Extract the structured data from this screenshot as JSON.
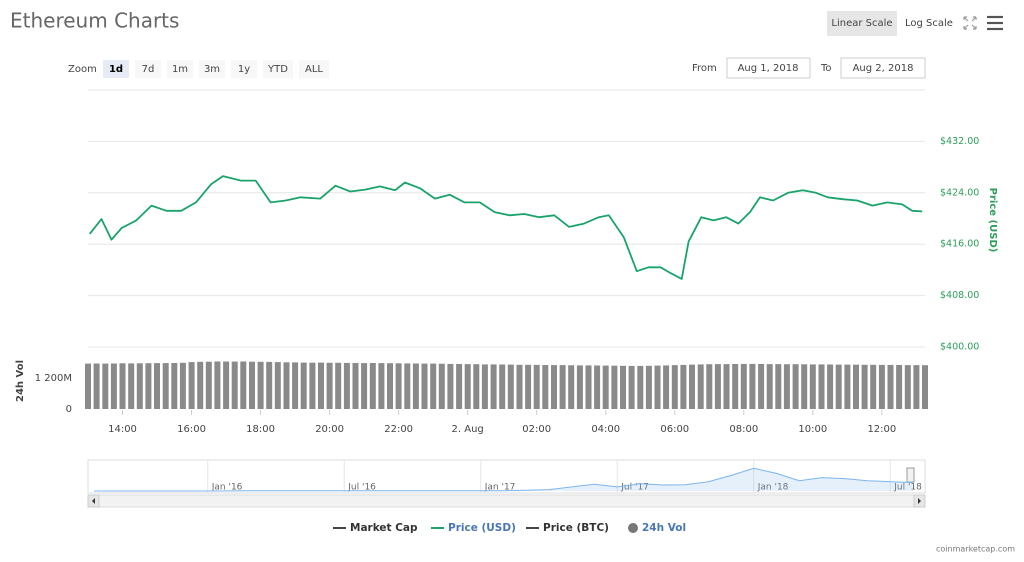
{
  "header": {
    "title": "Ethereum Charts",
    "linear_scale": "Linear Scale",
    "log_scale": "Log Scale",
    "zoom_label": "Zoom",
    "zoom": [
      "1d",
      "7d",
      "1m",
      "3m",
      "1y",
      "YTD",
      "ALL"
    ],
    "from_label": "From",
    "from": "Aug 1, 2018",
    "to_label": "To",
    "to": "Aug 2, 2018"
  },
  "legend": [
    {
      "name": "Market Cap",
      "color": "#434348"
    },
    {
      "name": "Price (USD)",
      "color": "#1aa36b"
    },
    {
      "name": "Price (BTC)",
      "color": "#434348"
    },
    {
      "name": "24h Vol",
      "color": "#777777"
    }
  ],
  "credit": "coinmarketcap.com",
  "chart_data": [
    {
      "type": "line",
      "y_label": "Price (USD)",
      "color": "#1aa36b",
      "grid": true,
      "xlim": [
        13,
        37.25
      ],
      "xticks": [
        {
          "value": 14,
          "label": "14:00"
        },
        {
          "value": 16,
          "label": "16:00"
        },
        {
          "value": 18,
          "label": "18:00"
        },
        {
          "value": 20,
          "label": "20:00"
        },
        {
          "value": 22,
          "label": "22:00"
        },
        {
          "value": 24,
          "label": "2. Aug"
        },
        {
          "value": 26,
          "label": "02:00"
        },
        {
          "value": 28,
          "label": "04:00"
        },
        {
          "value": 30,
          "label": "06:00"
        },
        {
          "value": 32,
          "label": "08:00"
        },
        {
          "value": 34,
          "label": "10:00"
        },
        {
          "value": 36,
          "label": "12:00"
        }
      ],
      "ylim": [
        400,
        440
      ],
      "yticks": [
        {
          "value": 400,
          "label": "$400.00"
        },
        {
          "value": 408,
          "label": "$408.00"
        },
        {
          "value": 416,
          "label": "$416.00"
        },
        {
          "value": 424,
          "label": "$424.00"
        },
        {
          "value": 432,
          "label": "$432.00"
        }
      ],
      "x": [
        13.05,
        13.39,
        13.68,
        13.97,
        14.4,
        14.84,
        15.27,
        15.7,
        16.13,
        16.56,
        16.91,
        17.43,
        17.86,
        18.29,
        18.73,
        19.16,
        19.73,
        20.17,
        20.6,
        21.03,
        21.46,
        21.9,
        22.18,
        22.62,
        23.05,
        23.48,
        23.91,
        24.35,
        24.78,
        25.21,
        25.64,
        26.07,
        26.51,
        26.94,
        27.37,
        27.8,
        28.09,
        28.52,
        28.9,
        29.24,
        29.59,
        29.88,
        30.2,
        30.4,
        30.77,
        31.12,
        31.49,
        31.84,
        32.18,
        32.47,
        32.85,
        33.28,
        33.71,
        34.09,
        34.43,
        34.86,
        35.29,
        35.73,
        36.16,
        36.59,
        36.88,
        37.17
      ],
      "values": [
        417.6,
        419.9,
        416.7,
        418.5,
        419.7,
        422,
        421.2,
        421.2,
        422.5,
        425.3,
        426.6,
        425.9,
        425.9,
        422.5,
        422.8,
        423.3,
        423.1,
        425.1,
        424.2,
        424.5,
        425,
        424.4,
        425.6,
        424.7,
        423.1,
        423.7,
        422.5,
        422.5,
        421,
        420.5,
        420.7,
        420.2,
        420.5,
        418.7,
        419.2,
        420.2,
        420.5,
        417.1,
        411.8,
        412.4,
        412.4,
        411.5,
        410.6,
        416.4,
        420.2,
        419.7,
        420.2,
        419.2,
        421,
        423.3,
        422.8,
        424,
        424.4,
        424,
        423.3,
        423,
        422.8,
        422,
        422.5,
        422.2,
        421.2,
        421.1
      ]
    },
    {
      "type": "bar",
      "y_label": "24h Vol",
      "color": "#8a8a8a",
      "grid": false,
      "xlim": [
        13,
        37.25
      ],
      "ylim": [
        0,
        2300
      ],
      "yticks": [
        0,
        {
          "value": 1200,
          "label": "1 200M"
        }
      ],
      "x": [
        13,
        13.25,
        13.5,
        13.75,
        14,
        14.25,
        14.5,
        14.75,
        15,
        15.25,
        15.5,
        15.75,
        16,
        16.25,
        16.5,
        16.75,
        17,
        17.25,
        17.5,
        17.75,
        18,
        18.25,
        18.5,
        18.75,
        19,
        19.25,
        19.5,
        19.75,
        20,
        20.25,
        20.5,
        20.75,
        21,
        21.25,
        21.5,
        21.75,
        22,
        22.25,
        22.5,
        22.75,
        23,
        23.25,
        23.5,
        23.75,
        24,
        24.25,
        24.5,
        24.75,
        25,
        25.25,
        25.5,
        25.75,
        26,
        26.25,
        26.5,
        26.75,
        27,
        27.25,
        27.5,
        27.75,
        28,
        28.25,
        28.5,
        28.75,
        29,
        29.25,
        29.5,
        29.75,
        30,
        30.25,
        30.5,
        30.75,
        31,
        31.25,
        31.5,
        31.75,
        32,
        32.25,
        32.5,
        32.75,
        33,
        33.25,
        33.5,
        33.75,
        34,
        34.25,
        34.5,
        34.75,
        35,
        35.25,
        35.5,
        35.75,
        36,
        36.25,
        36.5,
        36.75,
        37,
        37.25
      ],
      "values": [
        1770,
        1775,
        1768,
        1772,
        1780,
        1776,
        1782,
        1785,
        1790,
        1788,
        1795,
        1800,
        1830,
        1840,
        1845,
        1850,
        1852,
        1848,
        1850,
        1845,
        1840,
        1835,
        1830,
        1822,
        1815,
        1810,
        1805,
        1808,
        1800,
        1802,
        1798,
        1795,
        1790,
        1792,
        1788,
        1785,
        1780,
        1778,
        1775,
        1770,
        1768,
        1765,
        1760,
        1755,
        1750,
        1745,
        1740,
        1738,
        1735,
        1730,
        1725,
        1722,
        1720,
        1715,
        1712,
        1710,
        1705,
        1700,
        1698,
        1695,
        1690,
        1688,
        1685,
        1680,
        1682,
        1685,
        1690,
        1700,
        1710,
        1720,
        1730,
        1740,
        1745,
        1750,
        1752,
        1755,
        1760,
        1758,
        1755,
        1752,
        1750,
        1748,
        1745,
        1742,
        1740,
        1738,
        1735,
        1732,
        1730,
        1728,
        1725,
        1722,
        1720,
        1718,
        1715,
        1712,
        1710,
        1708
      ]
    },
    {
      "type": "area",
      "color": "#7cb5ec",
      "xlim": [
        "2015-08",
        "2018-08"
      ],
      "ylim": [
        0,
        1500
      ],
      "xticks": [
        {
          "value": "2016-01",
          "label": "Jan '16"
        },
        {
          "value": "2016-07",
          "label": "Jul '16"
        },
        {
          "value": "2017-01",
          "label": "Jan '17"
        },
        {
          "value": "2017-07",
          "label": "Jul '17"
        },
        {
          "value": "2018-01",
          "label": "Jan '18"
        },
        {
          "value": "2018-07",
          "label": "Jul '18"
        }
      ],
      "x": [
        "2015-08",
        "2015-09",
        "2015-10",
        "2015-11",
        "2015-12",
        "2016-01",
        "2016-02",
        "2016-03",
        "2016-04",
        "2016-05",
        "2016-06",
        "2016-07",
        "2016-08",
        "2016-09",
        "2016-10",
        "2016-11",
        "2016-12",
        "2017-01",
        "2017-02",
        "2017-03",
        "2017-04",
        "2017-05",
        "2017-06",
        "2017-07",
        "2017-08",
        "2017-09",
        "2017-10",
        "2017-11",
        "2017-12",
        "2018-01",
        "2018-02",
        "2018-03",
        "2018-04",
        "2018-05",
        "2018-06",
        "2018-07",
        "2018-08"
      ],
      "values": [
        1,
        1,
        1,
        1,
        1,
        2,
        5,
        11,
        9,
        12,
        14,
        12,
        11,
        13,
        12,
        9,
        8,
        10,
        13,
        40,
        70,
        200,
        330,
        200,
        350,
        290,
        300,
        450,
        750,
        1100,
        850,
        500,
        650,
        600,
        500,
        450,
        410
      ]
    }
  ]
}
